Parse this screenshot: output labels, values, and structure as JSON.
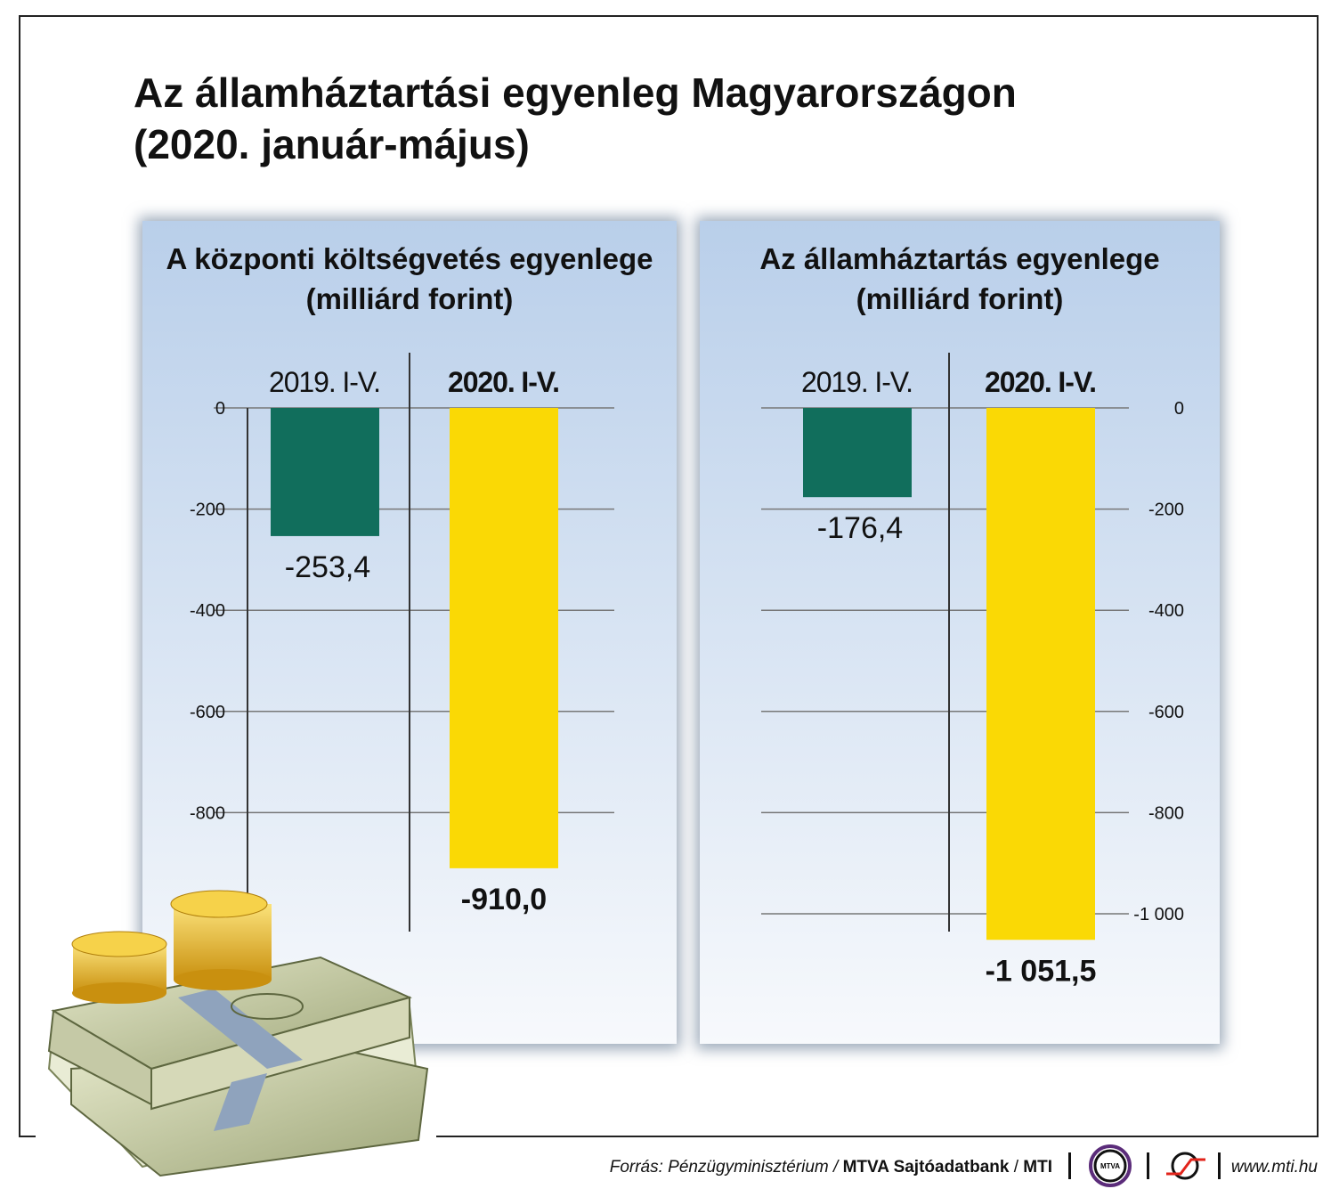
{
  "title_line1": "Az államháztartási egyenleg Magyarországon",
  "title_line2": "(2020. január-május)",
  "chart_data": [
    {
      "type": "bar",
      "title": "A központi költségvetés egyenlege",
      "subtitle": "(milliárd forint)",
      "categories": [
        "2019. I-V.",
        "2020. I-V."
      ],
      "values": [
        -253.4,
        -910.0
      ],
      "data_labels": [
        "-253,4",
        "-910,0"
      ],
      "colors": [
        "#116e5c",
        "#fad905"
      ],
      "ylim": [
        -1000,
        0
      ],
      "yticks": [
        0,
        -200,
        -400,
        -600,
        -800
      ],
      "ytick_labels": [
        "0",
        "-200",
        "-400",
        "-600",
        "-800"
      ],
      "axis_side": "left",
      "grid": true
    },
    {
      "type": "bar",
      "title": "Az államháztartás egyenlege",
      "subtitle": "(milliárd forint)",
      "categories": [
        "2019. I-V.",
        "2020. I-V."
      ],
      "values": [
        -176.4,
        -1051.5
      ],
      "data_labels": [
        "-176,4",
        "-1 051,5"
      ],
      "colors": [
        "#116e5c",
        "#fad905"
      ],
      "ylim": [
        -1000,
        0
      ],
      "yticks": [
        0,
        -200,
        -400,
        -600,
        -800,
        -1000
      ],
      "ytick_labels": [
        "0",
        "-200",
        "-400",
        "-600",
        "-800",
        "-1 000"
      ],
      "axis_side": "right",
      "grid": true
    }
  ],
  "footer": {
    "source_italic": "Forrás: Pénzügyminisztérium / ",
    "source_bold": "MTVA Sajtóadatbank",
    "source_sep": " / ",
    "source_bold2": "MTI",
    "mtva_logo": "MTVA",
    "url": "www.mti.hu"
  }
}
